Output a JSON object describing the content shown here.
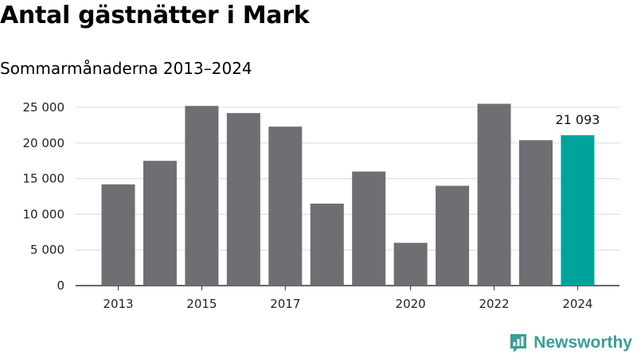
{
  "header": {
    "title": "Antal gästnätter i Mark",
    "subtitle": "Sommarmånaderna 2013–2024"
  },
  "brand": {
    "name": "Newsworthy",
    "icon": "newsworthy-logo-icon",
    "color": "#3a9d96"
  },
  "colors": {
    "bar": "#6f6e73",
    "highlight": "#00a39a",
    "grid": "#d9d9d9",
    "axis": "#333333"
  },
  "chart_data": {
    "type": "bar",
    "title": "Antal gästnätter i Mark",
    "subtitle": "Sommarmånaderna 2013–2024",
    "categories": [
      "2013",
      "2014",
      "2015",
      "2016",
      "2017",
      "2018",
      "2019",
      "2020",
      "2021",
      "2022",
      "2023",
      "2024"
    ],
    "values": [
      14200,
      17500,
      25200,
      24200,
      22300,
      11500,
      16000,
      6000,
      14000,
      25500,
      20400,
      21093
    ],
    "x_tick_labels": [
      "2013",
      "",
      "2015",
      "",
      "2017",
      "",
      "",
      "2020",
      "",
      "2022",
      "",
      "2024"
    ],
    "y_ticks": [
      0,
      5000,
      10000,
      15000,
      20000,
      25000
    ],
    "y_tick_labels": [
      "0",
      "5 000",
      "10 000",
      "15 000",
      "20 000",
      "25 000"
    ],
    "ylim": [
      0,
      26000
    ],
    "grid": true,
    "highlight_index": 11,
    "annotations": [
      {
        "index": 11,
        "text": "21 093"
      }
    ],
    "xlabel": "",
    "ylabel": ""
  }
}
